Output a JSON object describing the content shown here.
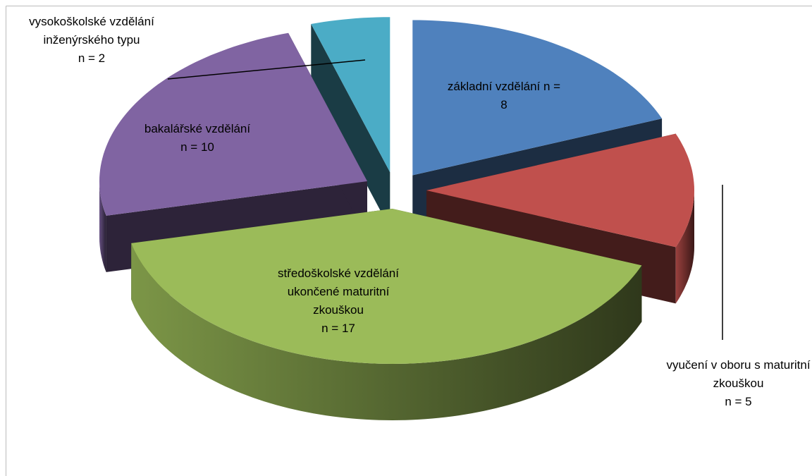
{
  "chart_data": {
    "type": "pie3d",
    "categories": [
      "základní vzdělání",
      "vyučení v oboru s maturitní zkouškou",
      "středoškolské vzdělání ukončené maturitní zkouškou",
      "bakalářské vzdělání",
      "vysokoškolské vzdělání inženýrského typu"
    ],
    "values": [
      8,
      5,
      17,
      10,
      2
    ],
    "value_labels": [
      "n = 8",
      "n = 5",
      "n = 17",
      "n = 10",
      "n = 2"
    ],
    "colors": [
      "#4f81bd",
      "#c0504d",
      "#9bbb59",
      "#8064a2",
      "#4bacc6"
    ]
  }
}
